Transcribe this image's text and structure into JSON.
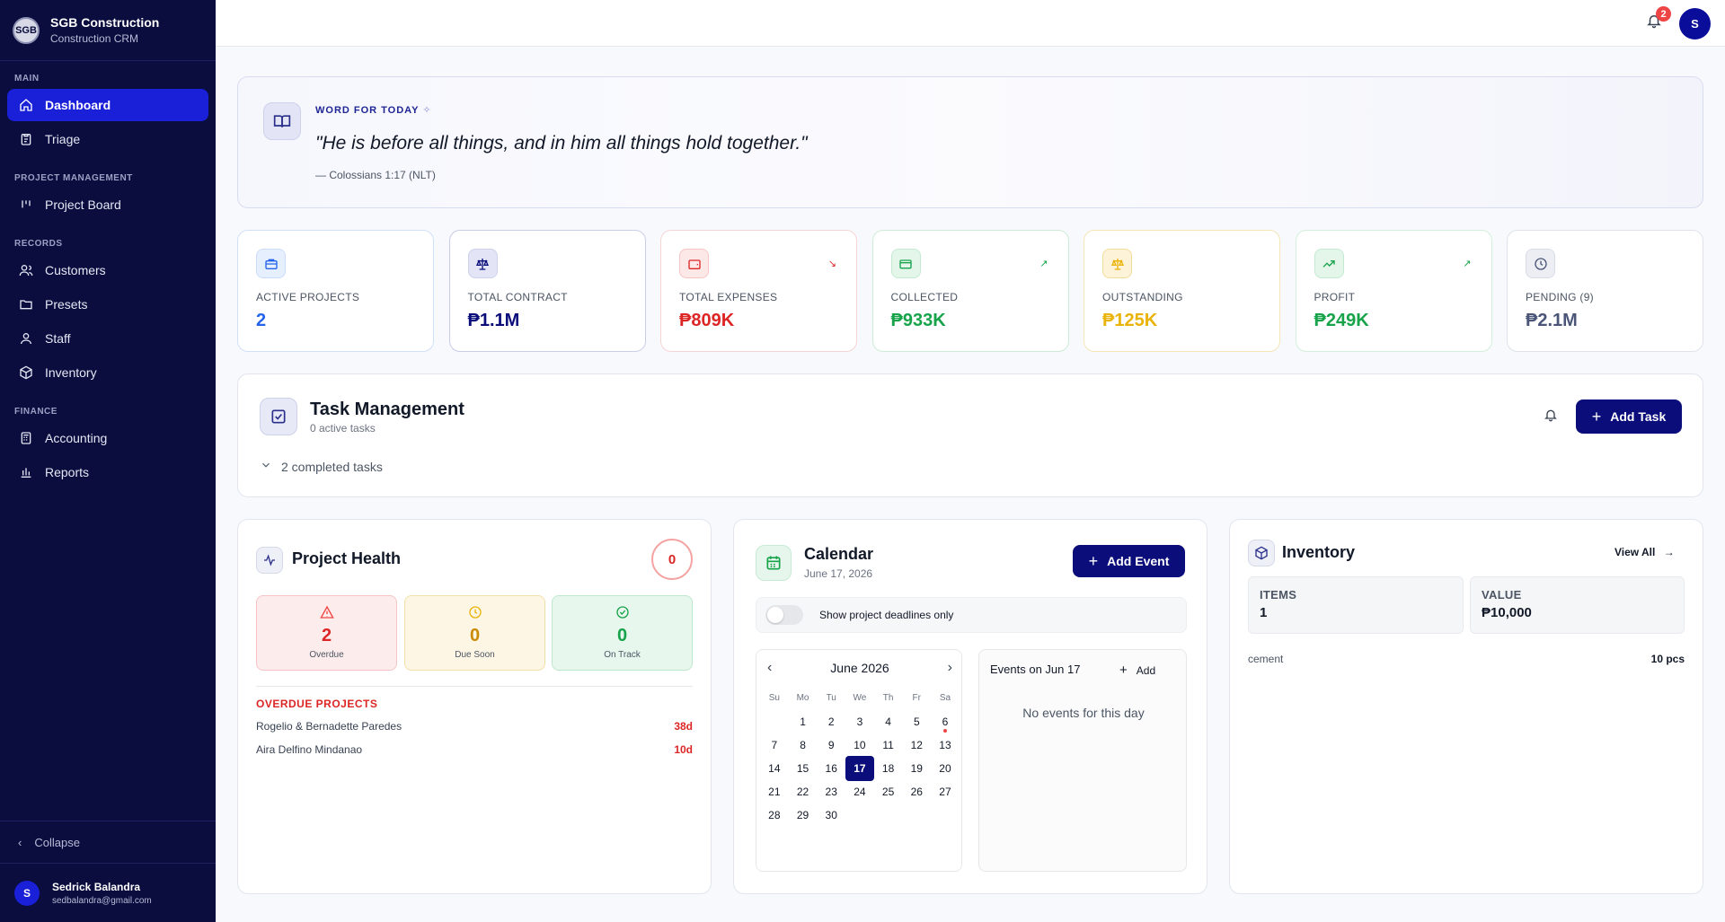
{
  "brand": {
    "logo_text": "SGB",
    "title": "SGB Construction",
    "subtitle": "Construction CRM"
  },
  "sidebar": {
    "sections": {
      "main": "MAIN",
      "project_management": "PROJECT MANAGEMENT",
      "records": "RECORDS",
      "finance": "FINANCE"
    },
    "items": {
      "dashboard": {
        "label": "Dashboard",
        "icon": "home-icon",
        "active": true
      },
      "triage": {
        "label": "Triage",
        "icon": "clipboard-icon"
      },
      "project_board": {
        "label": "Project Board",
        "icon": "kanban-icon"
      },
      "customers": {
        "label": "Customers",
        "icon": "users-icon"
      },
      "presets": {
        "label": "Presets",
        "icon": "folder-icon"
      },
      "staff": {
        "label": "Staff",
        "icon": "user-icon"
      },
      "inventory": {
        "label": "Inventory",
        "icon": "box-icon"
      },
      "accounting": {
        "label": "Accounting",
        "icon": "calculator-icon"
      },
      "reports": {
        "label": "Reports",
        "icon": "bar-chart-icon"
      }
    },
    "collapse_label": "Collapse",
    "user": {
      "initial": "S",
      "name": "Sedrick Balandra",
      "email": "sedbalandra@gmail.com"
    }
  },
  "topbar": {
    "notification_count": "2",
    "avatar_initial": "S"
  },
  "verse": {
    "label": "WORD FOR TODAY",
    "text": "\"He is before all things, and in him all things hold together.\"",
    "reference": "— Colossians 1:17 (NLT)"
  },
  "stats": [
    {
      "label": "ACTIVE PROJECTS",
      "value": "2",
      "color": "#2563eb",
      "icon": "briefcase-icon"
    },
    {
      "label": "TOTAL CONTRACT",
      "value": "₱1.1M",
      "color": "#0a0d7a",
      "icon": "scale-icon"
    },
    {
      "label": "TOTAL EXPENSES",
      "value": "₱809K",
      "color": "#dc2626",
      "icon": "wallet-icon",
      "trend": "↘"
    },
    {
      "label": "COLLECTED",
      "value": "₱933K",
      "color": "#16a34a",
      "icon": "credit-card-icon",
      "trend": "↗"
    },
    {
      "label": "OUTSTANDING",
      "value": "₱125K",
      "color": "#eab308",
      "icon": "scale-icon"
    },
    {
      "label": "PROFIT",
      "value": "₱249K",
      "color": "#16a34a",
      "icon": "trending-up-icon",
      "trend": "↗"
    },
    {
      "label": "PENDING (9)",
      "value": "₱2.1M",
      "color": "#4b5577",
      "icon": "clock-icon"
    }
  ],
  "tasks": {
    "title": "Task Management",
    "subtitle": "0 active tasks",
    "completed": "2 completed tasks",
    "add_label": "Add Task"
  },
  "health": {
    "title": "Project Health",
    "score": "0",
    "overdue": {
      "count": "2",
      "label": "Overdue"
    },
    "due_soon": {
      "count": "0",
      "label": "Due Soon"
    },
    "on_track": {
      "count": "0",
      "label": "On Track"
    },
    "overdue_title": "OVERDUE PROJECTS",
    "overdue_projects": [
      {
        "name": "Rogelio & Bernadette Paredes",
        "days": "38d"
      },
      {
        "name": "Aira Delfino Mindanao",
        "days": "10d"
      }
    ]
  },
  "calendar": {
    "title": "Calendar",
    "date": "June 17, 2026",
    "add_event_label": "Add Event",
    "toggle_label": "Show project deadlines only",
    "month_label": "June 2026",
    "prev": "‹",
    "next": "›",
    "dow": [
      "Su",
      "Mo",
      "Tu",
      "We",
      "Th",
      "Fr",
      "Sa"
    ],
    "weeks": [
      [
        "",
        "1",
        "2",
        "3",
        "4",
        "5",
        "6"
      ],
      [
        "7",
        "8",
        "9",
        "10",
        "11",
        "12",
        "13"
      ],
      [
        "14",
        "15",
        "16",
        "17",
        "18",
        "19",
        "20"
      ],
      [
        "21",
        "22",
        "23",
        "24",
        "25",
        "26",
        "27"
      ],
      [
        "28",
        "29",
        "30",
        "",
        "",
        "",
        ""
      ]
    ],
    "selected_day": "17",
    "event_dot_day": "6",
    "events_title": "Events on Jun 17",
    "events_add": "Add",
    "events_empty": "No events for this day"
  },
  "inventory": {
    "title": "Inventory",
    "view_all": "View All",
    "items_label": "ITEMS",
    "items_value": "1",
    "value_label": "VALUE",
    "value_value": "₱10,000",
    "rows": [
      {
        "name": "cement",
        "qty": "10 pcs"
      }
    ]
  }
}
